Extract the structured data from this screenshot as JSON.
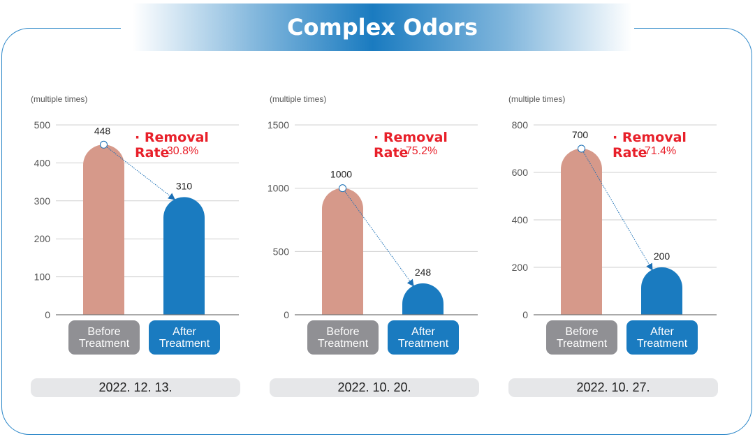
{
  "title": "Complex Odors",
  "colors": {
    "before": "#d6998a",
    "after": "#1a7bc0",
    "accent_red": "#e8202a",
    "before_button": "#909094"
  },
  "chart_data": [
    {
      "type": "bar",
      "unit_label": "(multiple times)",
      "categories": [
        "Before\nTreatment",
        "After\nTreatment"
      ],
      "values": [
        448,
        310
      ],
      "value_labels": [
        "448",
        "310"
      ],
      "ylim": [
        0,
        500
      ],
      "yticks": [
        0,
        100,
        200,
        300,
        400,
        500
      ],
      "removal_label": "· Removal Rate",
      "removal_value": ": 30.8%",
      "date": "2022. 12. 13."
    },
    {
      "type": "bar",
      "unit_label": "(multiple times)",
      "categories": [
        "Before\nTreatment",
        "After\nTreatment"
      ],
      "values": [
        1000,
        248
      ],
      "value_labels": [
        "1000",
        "248"
      ],
      "ylim": [
        0,
        1500
      ],
      "yticks": [
        0,
        500,
        1000,
        1500
      ],
      "removal_label": "· Removal Rate",
      "removal_value": ": 75.2%",
      "date": "2022. 10. 20."
    },
    {
      "type": "bar",
      "unit_label": "(multiple times)",
      "categories": [
        "Before\nTreatment",
        "After\nTreatment"
      ],
      "values": [
        700,
        200
      ],
      "value_labels": [
        "700",
        "200"
      ],
      "ylim": [
        0,
        800
      ],
      "yticks": [
        0,
        200,
        400,
        600,
        800
      ],
      "removal_label": "· Removal Rate",
      "removal_value": ": 71.4%",
      "date": "2022. 10. 27."
    }
  ]
}
